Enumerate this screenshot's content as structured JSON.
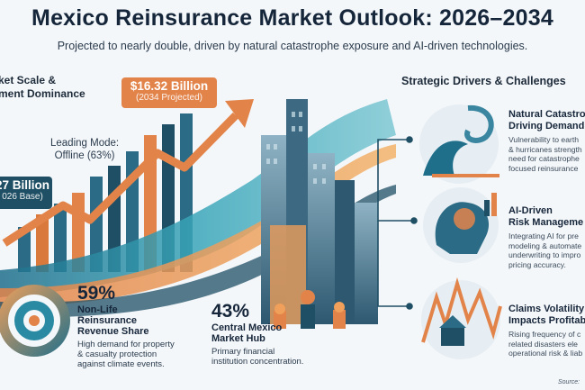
{
  "header": {
    "title": "Mexico Reinsurance Market Outlook: 2026–2034",
    "subtitle": "Projected to nearly double, driven by natural catastrophe exposure and AI-driven technologies."
  },
  "left_panel": {
    "heading_line1": "ket Scale &",
    "heading_line2": "ment Dominance",
    "projected_value": "$16.32 Billion",
    "projected_note": "(2034 Projected)",
    "base_value": "27 Billion",
    "base_note": "026 Base)",
    "mode_line1": "Leading Mode:",
    "mode_line2": "Offline (63%)"
  },
  "stats": {
    "share": {
      "value": "59%",
      "name_lines": [
        "Non-Life",
        "Reinsurance",
        "Revenue Share"
      ],
      "desc_lines": [
        "High demand for property",
        "& casualty protection",
        "against climate events."
      ]
    },
    "hub": {
      "value": "43%",
      "name_lines": [
        "Central Mexico",
        "Market Hub"
      ],
      "desc_lines": [
        "Primary financial",
        "institution concentration."
      ]
    }
  },
  "right_panel": {
    "heading": "Strategic Drivers & Challenges",
    "drivers": [
      {
        "title_lines": [
          "Natural Catastro",
          "Driving Demand"
        ],
        "desc_lines": [
          "Vulnerability to earth",
          "& hurricanes strength",
          "need for catastrophe",
          "focused reinsurance"
        ]
      },
      {
        "title_lines": [
          "AI-Driven",
          "Risk Manageme"
        ],
        "desc_lines": [
          "Integrating AI for pre",
          "modeling & automate",
          "underwriting to impro",
          "pricing accuracy."
        ]
      },
      {
        "title_lines": [
          "Claims Volatility",
          "Impacts Profitab"
        ],
        "desc_lines": [
          "Rising frequency of c",
          "related disasters ele",
          "operational risk & liab"
        ]
      }
    ]
  },
  "footer": {
    "source": "Source:"
  },
  "colors": {
    "accent_orange": "#e2844a",
    "accent_teal": "#1f4f64",
    "navy": "#16263a",
    "background": "#f4f7fa"
  }
}
